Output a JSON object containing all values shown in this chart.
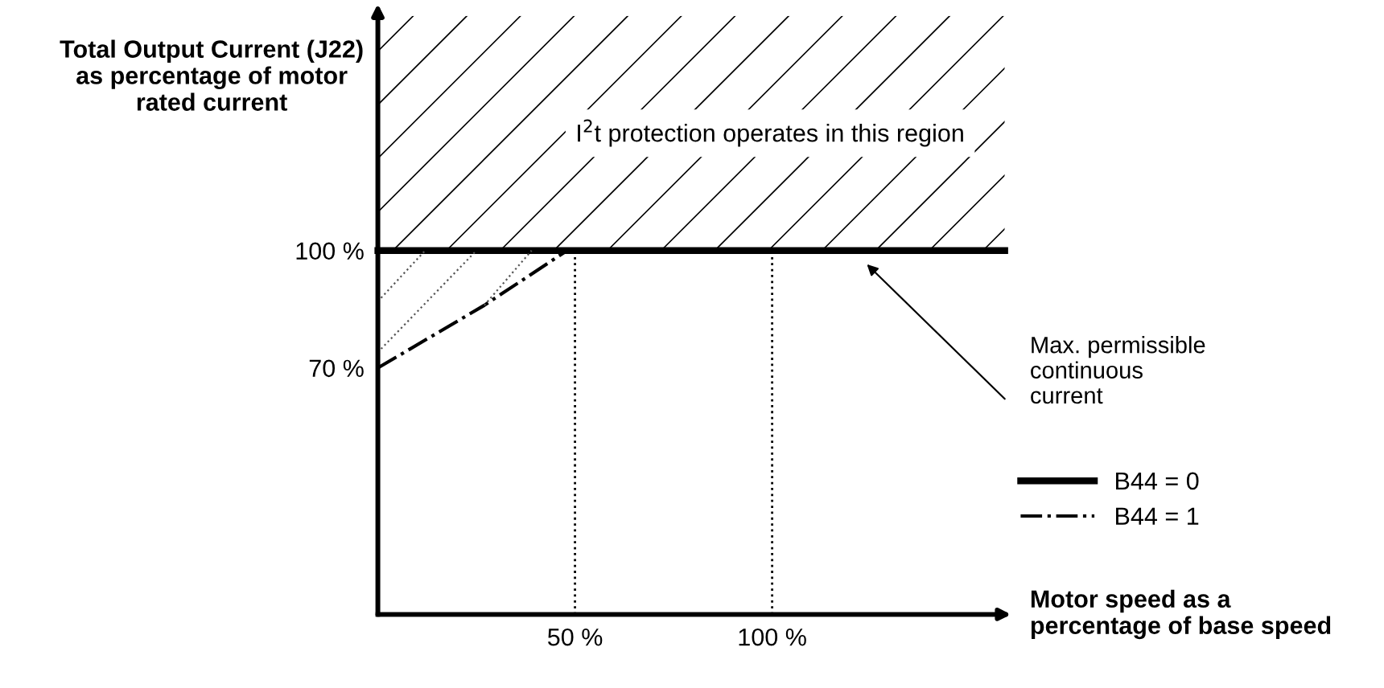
{
  "chart_data": {
    "type": "line",
    "xlabel": "Motor speed as a\npercentage of base speed",
    "ylabel": "Total Output Current (J22)\nas percentage of motor\nrated current",
    "xlim": [
      0,
      159
    ],
    "ylim": [
      7,
      160
    ],
    "xticks": [
      {
        "value": 50,
        "label": "50 %"
      },
      {
        "value": 100,
        "label": "100 %"
      }
    ],
    "yticks": [
      {
        "value": 70,
        "label": "70 %"
      },
      {
        "value": 100,
        "label": "100 %"
      }
    ],
    "grid": false,
    "legend": "right",
    "series": [
      {
        "name": "B44 = 0",
        "color": "#000000",
        "line_style": "solid",
        "x": [
          0,
          159
        ],
        "values": [
          100,
          100
        ]
      },
      {
        "name": "B44 = 1",
        "color": "#000000",
        "line_style": "dashdot",
        "x": [
          0,
          27,
          48
        ],
        "values": [
          70,
          86,
          100
        ]
      },
      {
        "color": "#555555",
        "line_style": "dotted",
        "x": [
          0,
          12
        ],
        "values": [
          87,
          100
        ]
      },
      {
        "color": "#555555",
        "line_style": "dotted",
        "x": [
          0,
          25
        ],
        "values": [
          74,
          100
        ]
      },
      {
        "color": "#555555",
        "line_style": "dotted",
        "x": [
          27,
          39
        ],
        "values": [
          86,
          100
        ]
      }
    ],
    "ref_lines": [
      {
        "axis": "x",
        "value": 50,
        "line_style": "dotted",
        "color": "#000000"
      },
      {
        "axis": "x",
        "value": 100,
        "line_style": "dotted",
        "color": "#000000"
      }
    ],
    "bands": [
      {
        "axis": "y",
        "from": 100,
        "to": 160,
        "label": "I$^{2}$t protection operates in this region"
      }
    ],
    "annotations": [
      "Max. permissible\ncontinuous\ncurrent"
    ]
  }
}
